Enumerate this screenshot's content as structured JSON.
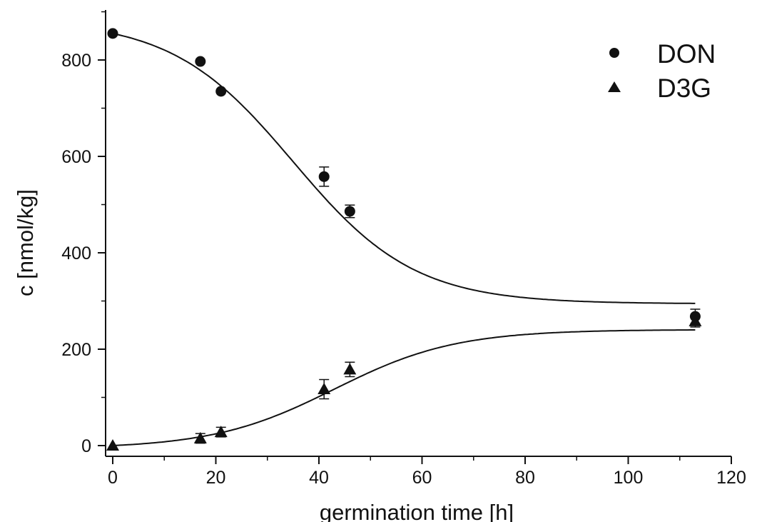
{
  "chart_data": {
    "type": "scatter",
    "xlabel": "germination time [h]",
    "ylabel": "c [nmol/kg]",
    "xlim": [
      0,
      120
    ],
    "ylim": [
      0,
      880
    ],
    "xticks": [
      0,
      20,
      40,
      60,
      80,
      100,
      120
    ],
    "yticks": [
      0,
      200,
      400,
      600,
      800
    ],
    "grid": false,
    "legend_position": "top-right",
    "series": [
      {
        "name": "DON",
        "marker": "circle",
        "x": [
          0,
          17,
          21,
          41,
          46,
          113
        ],
        "y": [
          855,
          797,
          735,
          558,
          486,
          268
        ],
        "err": [
          0,
          0,
          0,
          20,
          13,
          15
        ]
      },
      {
        "name": "D3G",
        "marker": "triangle",
        "x": [
          0,
          17,
          21,
          41,
          46,
          113
        ],
        "y": [
          0,
          15,
          28,
          117,
          158,
          258
        ],
        "err": [
          0,
          10,
          10,
          20,
          15,
          12
        ]
      }
    ],
    "fits": [
      {
        "series": "DON",
        "type": "sigmoid",
        "x_range": [
          0,
          113
        ],
        "y_start": 855,
        "y_end": 295
      },
      {
        "series": "D3G",
        "type": "sigmoid",
        "x_range": [
          0,
          113
        ],
        "y_start": 0,
        "y_end": 240
      }
    ]
  }
}
